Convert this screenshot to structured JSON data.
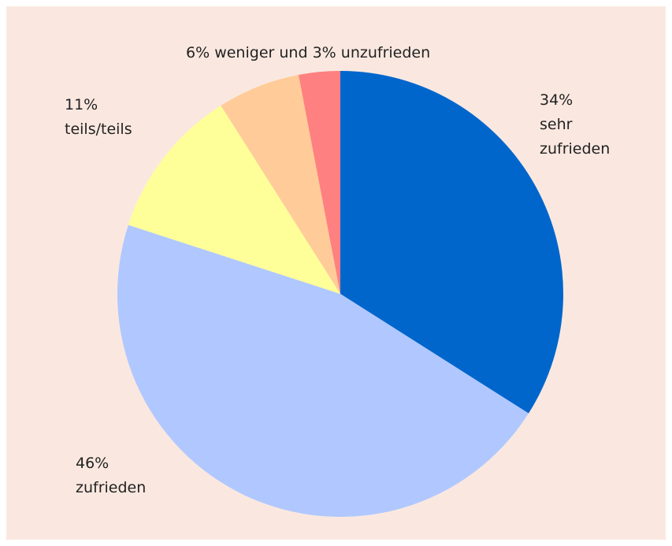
{
  "chart_data": {
    "type": "pie",
    "categories": [
      "sehr zufrieden",
      "zufrieden",
      "teils/teils",
      "weniger",
      "unzufrieden"
    ],
    "values": [
      34,
      46,
      11,
      6,
      3
    ],
    "value_labels": [
      "34%",
      "46%",
      "11%",
      "6%",
      "3%"
    ],
    "colors": [
      "#0066cc",
      "#b0c8ff",
      "#ffff99",
      "#ffcc99",
      "#ff8080"
    ],
    "joiner": "und"
  }
}
